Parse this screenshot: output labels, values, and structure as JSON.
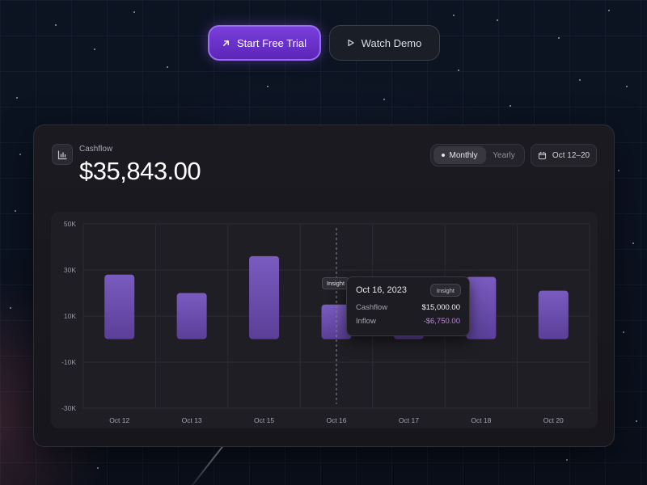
{
  "cta": {
    "primary_label": "Start Free Trial",
    "secondary_label": "Watch Demo"
  },
  "card": {
    "label": "Cashflow",
    "value": "$35,843.00",
    "toggle": {
      "active": "Monthly",
      "inactive": "Yearly"
    },
    "date_range": "Oct 12–20"
  },
  "tooltip": {
    "date": "Oct 16, 2023",
    "badge": "Insight",
    "rows": [
      {
        "label": "Cashflow",
        "value": "$15,000.00"
      },
      {
        "label": "Inflow",
        "value": "-$6,750.00"
      }
    ],
    "tag": "Insight"
  },
  "colors": {
    "accent": "#7a3fdc",
    "bar_top": "#7a5bc0",
    "bar_bottom": "#5a3f98",
    "negative": "#c07fe0"
  },
  "chart_data": {
    "type": "bar",
    "categories": [
      "Oct 12",
      "Oct 13",
      "Oct 15",
      "Oct 16",
      "Oct 17",
      "Oct 18",
      "Oct 20"
    ],
    "series": [
      {
        "values": [
          28000,
          20000,
          36000,
          15000,
          12000,
          27000,
          21000
        ]
      }
    ],
    "y_ticks": [
      "50K",
      "30K",
      "10K",
      "-10K",
      "-30K"
    ],
    "ylim": [
      -30000,
      50000
    ],
    "grid": true,
    "highlight_category": "Oct 16"
  }
}
